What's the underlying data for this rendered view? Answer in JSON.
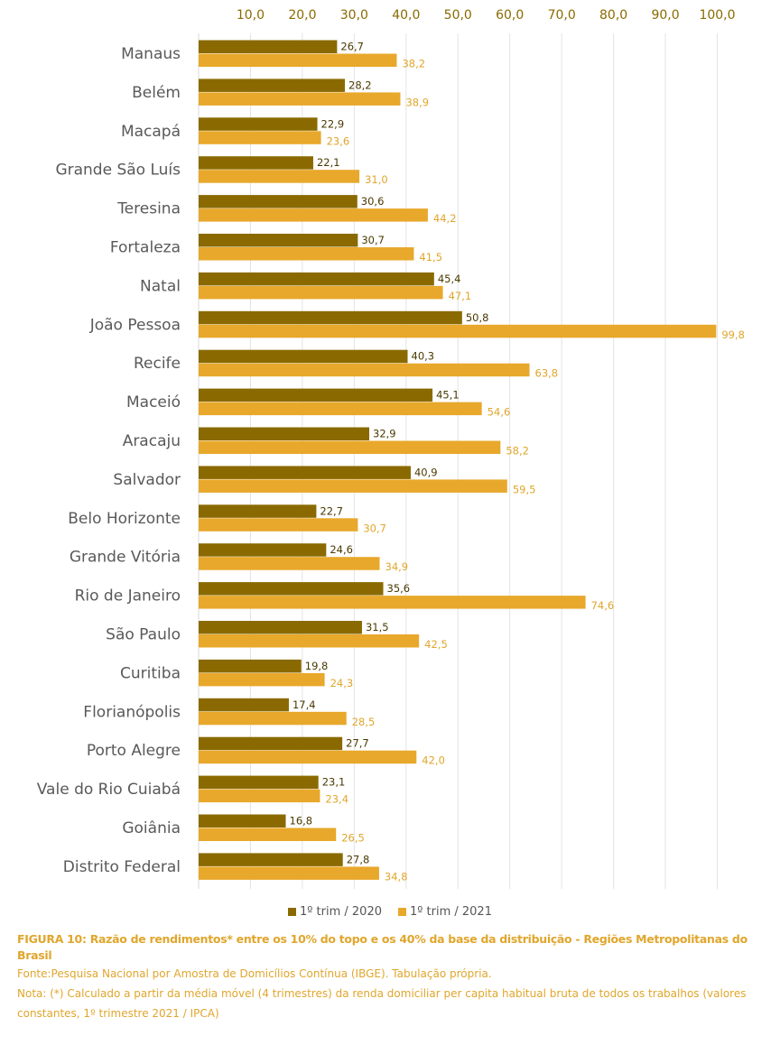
{
  "chart_data": {
    "type": "bar",
    "orientation": "horizontal",
    "categories": [
      "Manaus",
      "Belém",
      "Macapá",
      "Grande São Luís",
      "Teresina",
      "Fortaleza",
      "Natal",
      "João Pessoa",
      "Recife",
      "Maceió",
      "Aracaju",
      "Salvador",
      "Belo Horizonte",
      "Grande Vitória",
      "Rio de Janeiro",
      "São Paulo",
      "Curitiba",
      "Florianópolis",
      "Porto Alegre",
      "Vale do Rio Cuiabá",
      "Goiânia",
      "Distrito Federal"
    ],
    "series": [
      {
        "name": "1º trim / 2020",
        "color": "#8a6a00",
        "values": [
          26.7,
          28.2,
          22.9,
          22.1,
          30.6,
          30.7,
          45.4,
          50.8,
          40.3,
          45.1,
          32.9,
          40.9,
          22.7,
          24.6,
          35.6,
          31.5,
          19.8,
          17.4,
          27.7,
          23.1,
          16.8,
          27.8
        ],
        "labels": [
          "26,7",
          "28,2",
          "22,9",
          "22,1",
          "30,6",
          "30,7",
          "45,4",
          "50,8",
          "40,3",
          "45,1",
          "32,9",
          "40,9",
          "22,7",
          "24,6",
          "35,6",
          "31,5",
          "19,8",
          "17,4",
          "27,7",
          "23,1",
          "16,8",
          "27,8"
        ]
      },
      {
        "name": "1º trim / 2021",
        "color": "#e8a82b",
        "values": [
          38.2,
          38.9,
          23.6,
          31.0,
          44.2,
          41.5,
          47.1,
          99.8,
          63.8,
          54.6,
          58.2,
          59.5,
          30.7,
          34.9,
          74.6,
          42.5,
          24.3,
          28.5,
          42.0,
          23.4,
          26.5,
          34.8
        ],
        "labels": [
          "38,2",
          "38,9",
          "23,6",
          "31,0",
          "44,2",
          "41,5",
          "47,1",
          "99,8",
          "63,8",
          "54,6",
          "58,2",
          "59,5",
          "30,7",
          "34,9",
          "74,6",
          "42,5",
          "24,3",
          "28,5",
          "42,0",
          "23,4",
          "26,5",
          "34,8"
        ]
      }
    ],
    "xlim": [
      0,
      100
    ],
    "x_ticks": [
      10,
      20,
      30,
      40,
      50,
      60,
      70,
      80,
      90,
      100
    ],
    "x_tick_labels": [
      "10,0",
      "20,0",
      "30,0",
      "40,0",
      "50,0",
      "60,0",
      "70,0",
      "80,0",
      "90,0",
      "100,0"
    ],
    "x_axis_position": "top",
    "grid": true,
    "legend_position": "bottom"
  },
  "caption": {
    "title": "FIGURA 10: Razão de rendimentos* entre os 10% do topo e os 40% da base da distribuição - Regiões Metropolitanas do Brasil",
    "source": "Fonte:Pesquisa Nacional por Amostra de Domicílios Contínua (IBGE). Tabulação própria.",
    "note": "Nota: (*) Calculado a partir da média móvel (4 trimestres) da renda domiciliar per capita habitual bruta de todos os trabalhos (valores constantes, 1º trimestre 2021 / IPCA)"
  }
}
